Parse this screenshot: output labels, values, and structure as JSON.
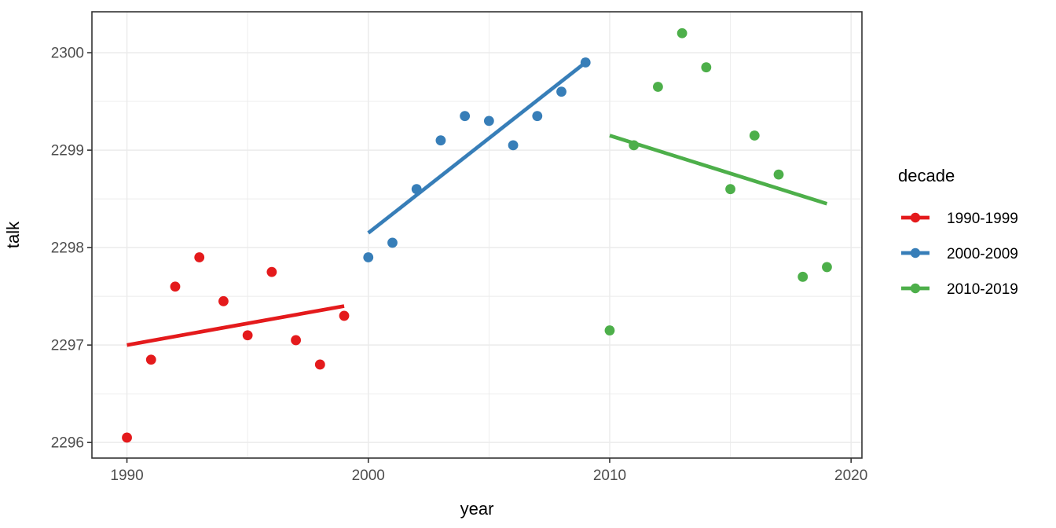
{
  "chart_data": {
    "type": "scatter",
    "title": "",
    "xlabel": "year",
    "ylabel": "talk",
    "x_ticks": [
      1990,
      2000,
      2010,
      2020
    ],
    "y_ticks": [
      2296,
      2297,
      2298,
      2299,
      2300
    ],
    "x_minor_gridlines": [
      1995,
      2005,
      2015
    ],
    "y_minor_gridlines": [
      2296.5,
      2297.5,
      2298.5,
      2299.5
    ],
    "xlim": [
      1988.55,
      2020.45
    ],
    "ylim": [
      2295.84,
      2300.42
    ],
    "grid": true,
    "legend": {
      "title": "decade",
      "position": "right"
    },
    "colors": {
      "red": "#E41A1C",
      "blue": "#377EB8",
      "green": "#4DAF4A",
      "grid": "#EBEBEB",
      "panel_border": "#333333",
      "tick_label": "#4D4D4D",
      "tick_mark": "#333333",
      "background": "#FFFFFF"
    },
    "series": [
      {
        "name": "1990-1999",
        "color": "#E41A1C",
        "x": [
          1990,
          1991,
          1992,
          1993,
          1994,
          1995,
          1996,
          1997,
          1998,
          1999
        ],
        "y": [
          2296.05,
          2296.85,
          2297.6,
          2297.9,
          2297.45,
          2297.1,
          2297.75,
          2297.05,
          2296.8,
          2297.3
        ],
        "trend": {
          "x": [
            1990,
            1999
          ],
          "y": [
            2297.0,
            2297.4
          ]
        }
      },
      {
        "name": "2000-2009",
        "color": "#377EB8",
        "x": [
          2000,
          2001,
          2002,
          2003,
          2004,
          2005,
          2006,
          2007,
          2008,
          2009
        ],
        "y": [
          2297.9,
          2298.05,
          2298.6,
          2299.1,
          2299.35,
          2299.3,
          2299.05,
          2299.35,
          2299.6,
          2299.9
        ],
        "trend": {
          "x": [
            2000,
            2009
          ],
          "y": [
            2298.15,
            2299.9
          ]
        }
      },
      {
        "name": "2010-2019",
        "color": "#4DAF4A",
        "x": [
          2010,
          2011,
          2012,
          2013,
          2014,
          2015,
          2016,
          2017,
          2018,
          2019
        ],
        "y": [
          2297.15,
          2299.05,
          2299.65,
          2300.2,
          2299.85,
          2298.6,
          2299.15,
          2298.75,
          2297.7,
          2297.8
        ],
        "trend": {
          "x": [
            2010,
            2019
          ],
          "y": [
            2299.15,
            2298.45
          ]
        }
      }
    ]
  }
}
